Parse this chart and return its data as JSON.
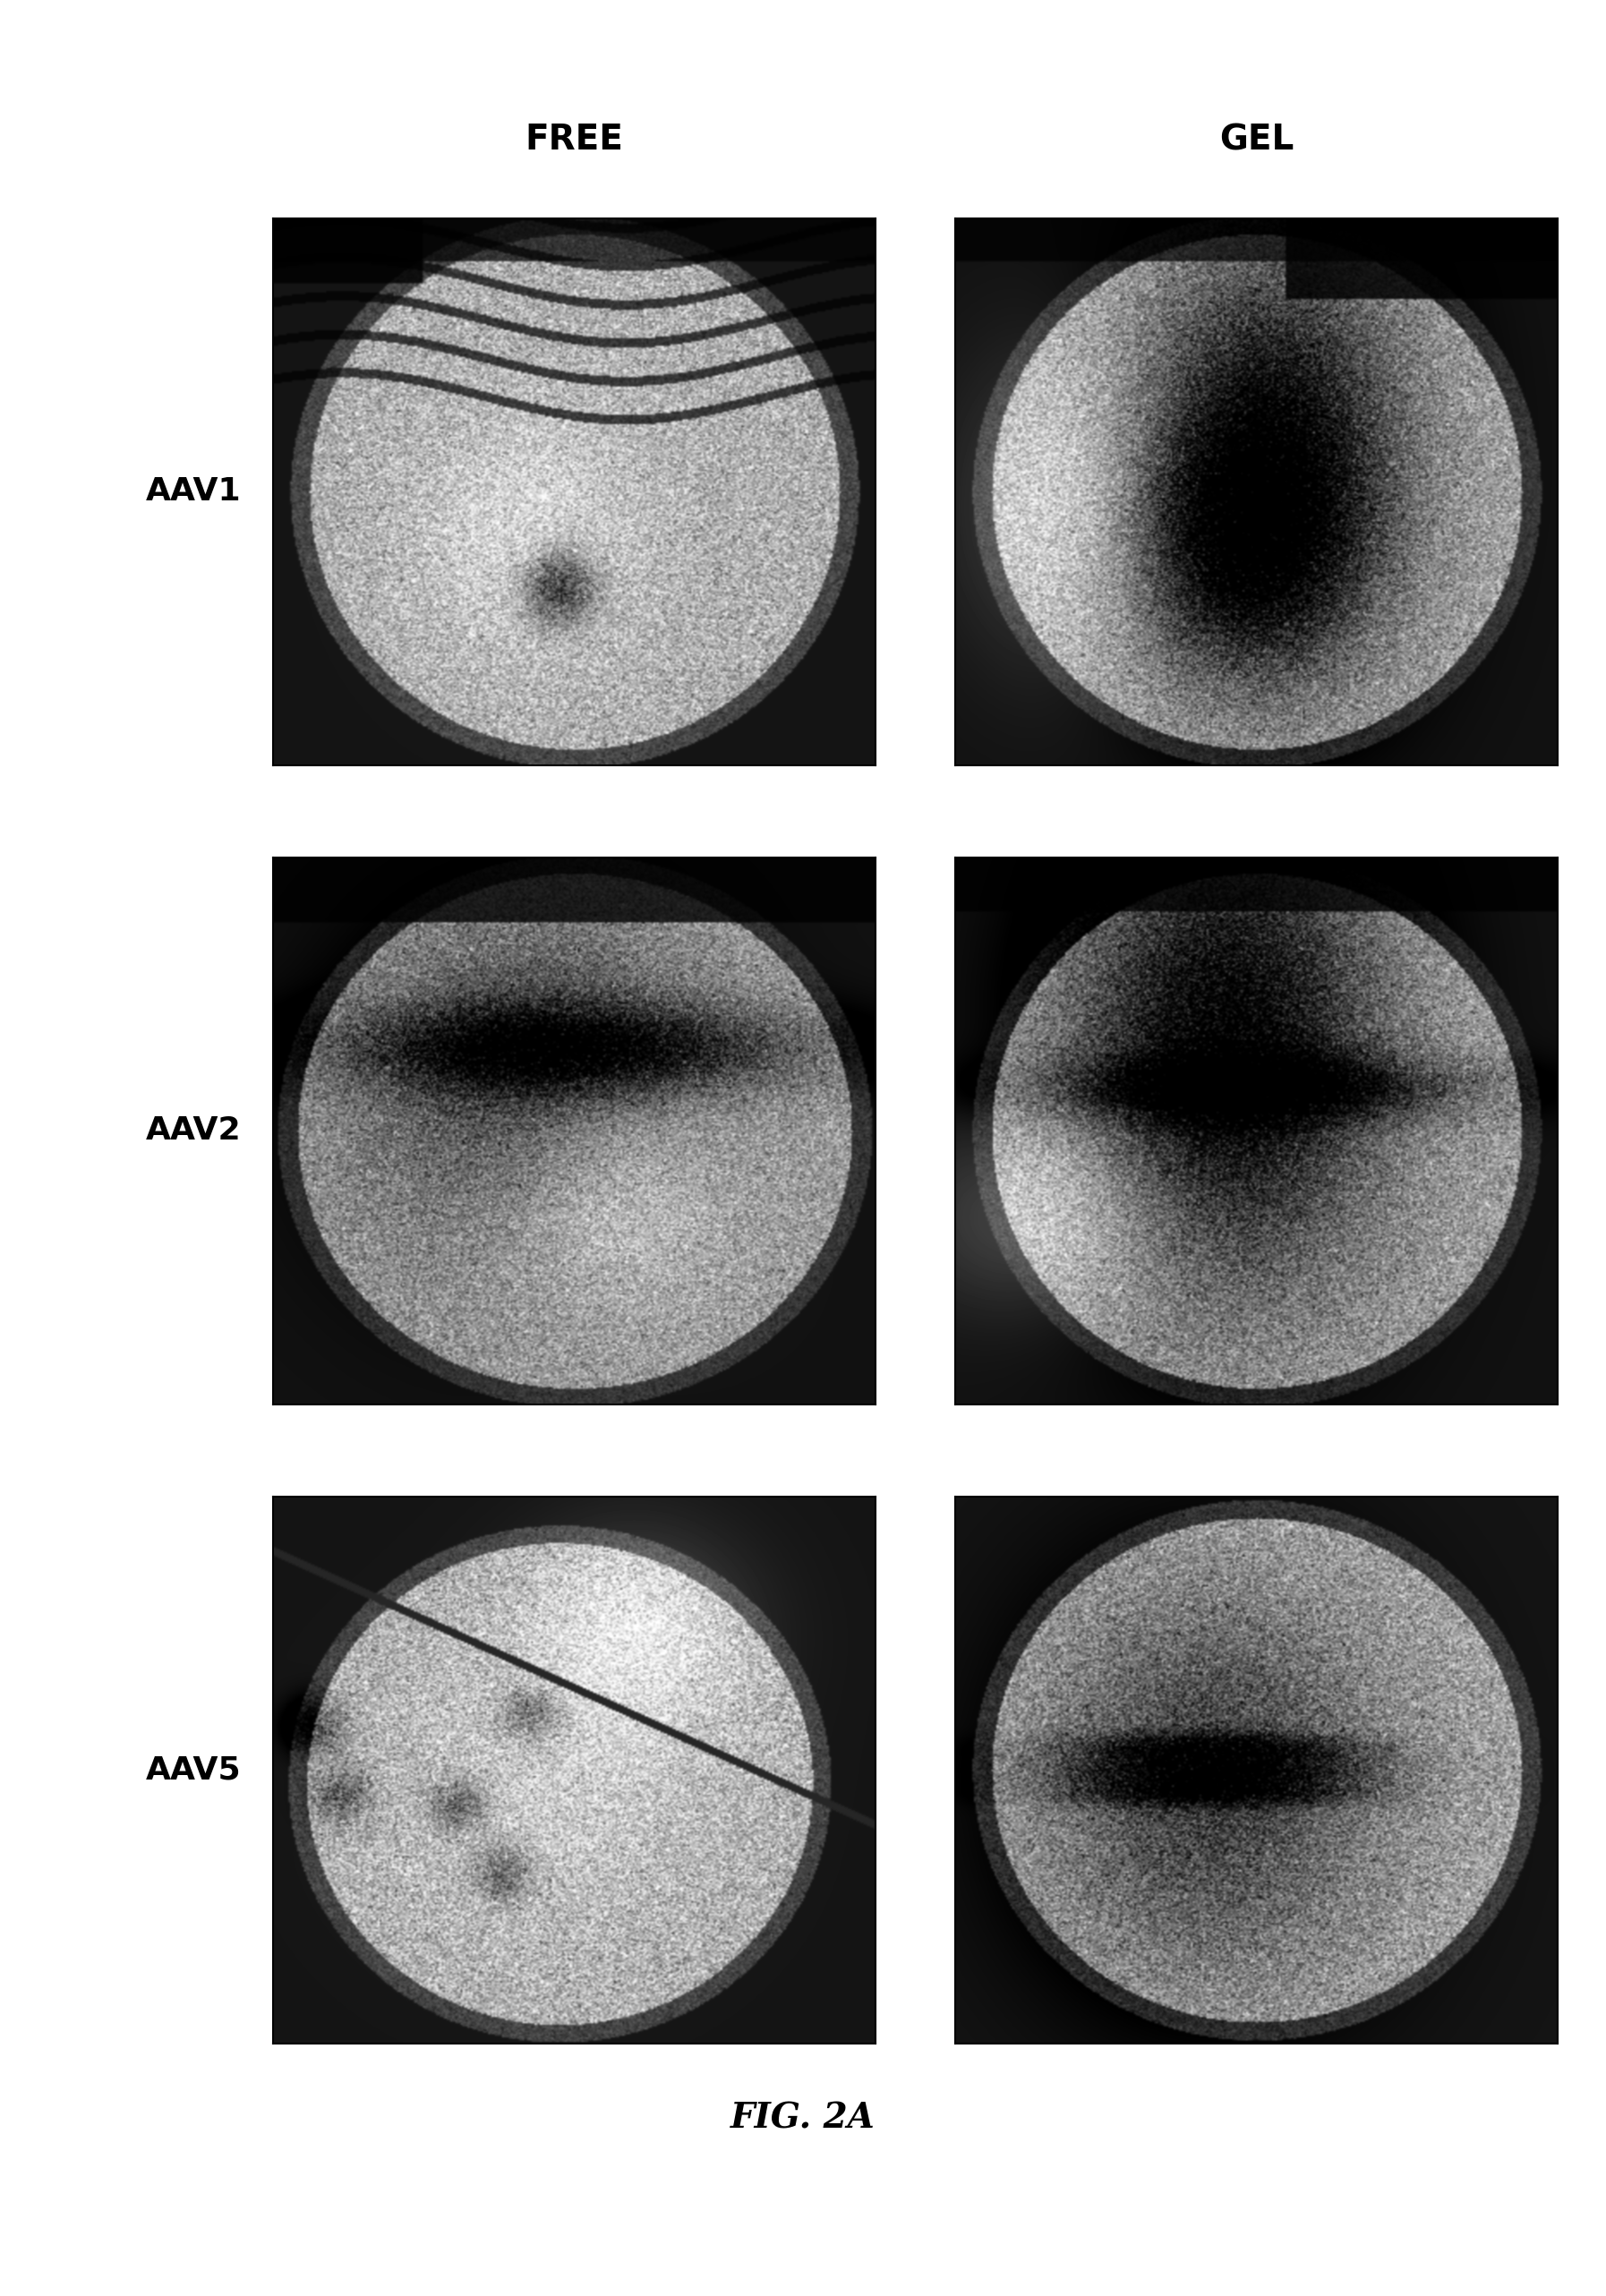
{
  "col_headers": [
    "FREE",
    "GEL"
  ],
  "row_labels": [
    "AAV1",
    "AAV2",
    "AAV5"
  ],
  "caption": "FIG. 2A",
  "background_color": "#ffffff",
  "header_fontsize": 28,
  "label_fontsize": 26,
  "caption_fontsize": 28,
  "fig_width": 17.94,
  "fig_height": 25.65,
  "header_fontweight": "bold",
  "label_fontweight": "bold",
  "caption_fontstyle": "italic",
  "caption_fontweight": "bold"
}
